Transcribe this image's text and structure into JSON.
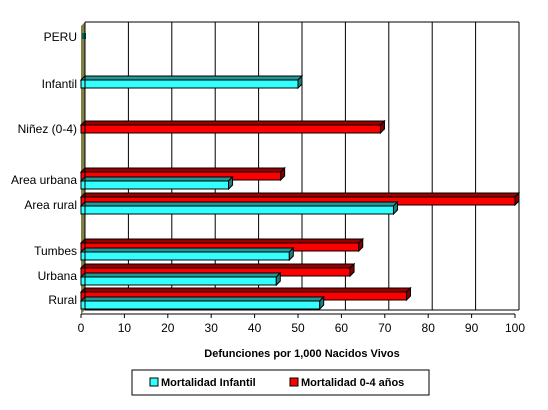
{
  "chart_data": {
    "type": "bar",
    "orientation": "horizontal",
    "title": "",
    "xlabel": "Defunciones por 1,000 Nacidos Vivos",
    "ylabel": "",
    "xlim": [
      0,
      100
    ],
    "xticks": [
      0,
      10,
      20,
      30,
      40,
      50,
      60,
      70,
      80,
      90,
      100
    ],
    "grid": "vertical",
    "legend_position": "bottom",
    "categories": [
      {
        "label": "PERU",
        "infantil": null,
        "ninez": null
      },
      {
        "label": "Infantil",
        "infantil": 50,
        "ninez": null
      },
      {
        "label": "Niñez (0-4)",
        "infantil": null,
        "ninez": 69
      },
      {
        "label": "Area urbana",
        "infantil": 34,
        "ninez": 46
      },
      {
        "label": "Area rural",
        "infantil": 72,
        "ninez": 100
      },
      {
        "label": "Tumbes",
        "infantil": 48,
        "ninez": 64
      },
      {
        "label": "Urbana",
        "infantil": 45,
        "ninez": 62
      },
      {
        "label": "Rural",
        "infantil": 55,
        "ninez": 75
      }
    ],
    "series": [
      {
        "key": "infantil",
        "name": "Mortalidad Infantil",
        "color": "#33ffff"
      },
      {
        "key": "ninez",
        "name": "Mortalidad 0-4 años",
        "color": "#ff0000"
      }
    ],
    "colors": {
      "wall": "#808040",
      "grid": "#000000"
    }
  }
}
